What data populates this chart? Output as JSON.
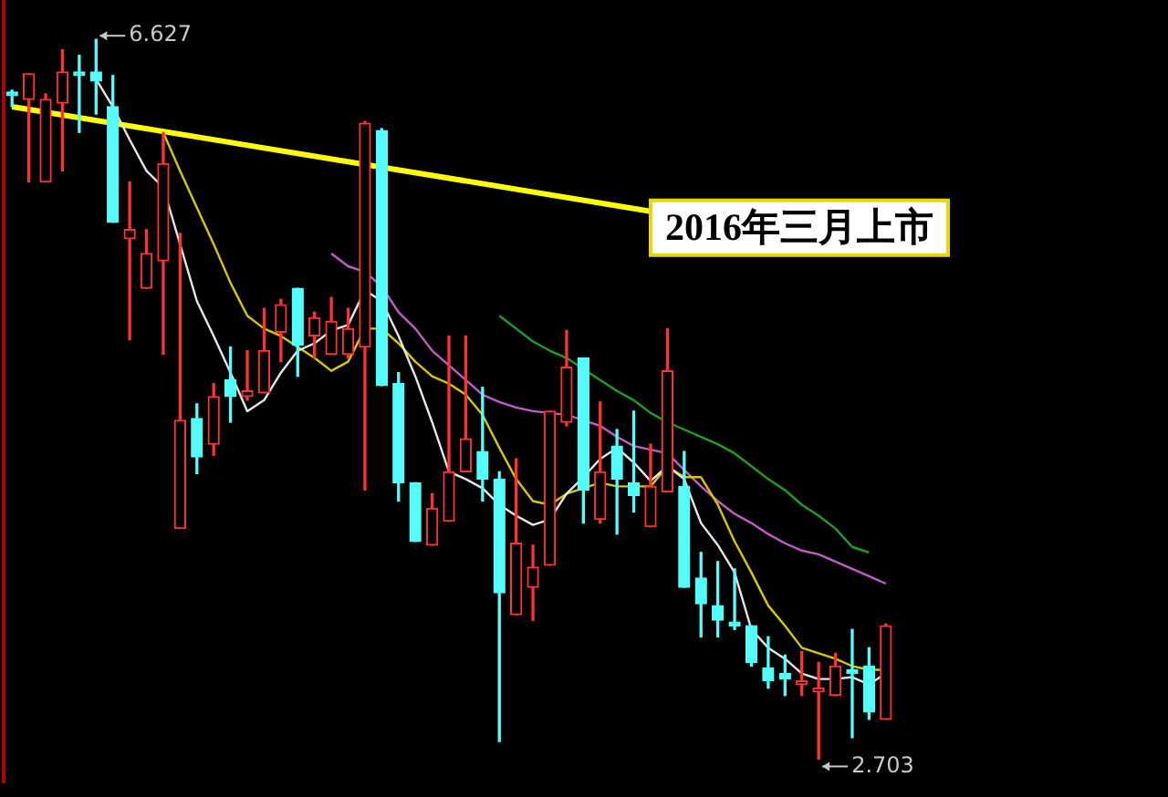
{
  "chart_data": {
    "type": "candlestick",
    "tick_labels": false,
    "legend": false,
    "marker": "none",
    "categories": [
      null,
      null,
      null,
      null,
      null,
      null,
      null,
      null,
      null,
      null,
      null,
      null,
      null,
      null,
      null,
      null,
      null,
      null,
      null,
      null,
      null,
      null,
      null,
      null,
      null,
      null,
      null,
      null,
      null,
      null,
      null,
      null,
      null,
      null,
      null,
      null,
      null,
      null,
      null,
      null,
      null,
      null,
      null,
      null,
      null,
      null,
      null,
      null,
      null,
      null,
      null,
      null,
      null
    ],
    "ohlc": [
      [
        6.33,
        6.35,
        6.26,
        6.32
      ],
      [
        6.3,
        6.44,
        5.85,
        6.44
      ],
      [
        5.85,
        6.33,
        5.85,
        6.3
      ],
      [
        6.28,
        6.57,
        5.91,
        6.45
      ],
      [
        6.44,
        6.54,
        6.12,
        6.43
      ],
      [
        6.45,
        6.627,
        6.22,
        6.4
      ],
      [
        6.26,
        6.43,
        5.63,
        5.63
      ],
      [
        5.54,
        5.85,
        4.99,
        5.59
      ],
      [
        5.27,
        5.59,
        5.27,
        5.46
      ],
      [
        5.42,
        6.12,
        4.91,
        5.95
      ],
      [
        3.96,
        5.57,
        3.96,
        4.55
      ],
      [
        4.56,
        4.64,
        4.26,
        4.35
      ],
      [
        4.42,
        4.75,
        4.36,
        4.68
      ],
      [
        4.77,
        4.95,
        4.54,
        4.68
      ],
      [
        4.68,
        4.93,
        4.66,
        4.71
      ],
      [
        4.7,
        5.16,
        4.7,
        4.93
      ],
      [
        5.03,
        5.21,
        4.87,
        5.18
      ],
      [
        5.27,
        5.27,
        4.79,
        4.96
      ],
      [
        5.01,
        5.14,
        4.89,
        5.11
      ],
      [
        4.91,
        5.22,
        4.91,
        5.09
      ],
      [
        4.91,
        5.16,
        4.89,
        5.05
      ],
      [
        4.95,
        6.18,
        4.17,
        6.17
      ],
      [
        6.13,
        6.14,
        4.74,
        4.74
      ],
      [
        4.75,
        4.81,
        4.11,
        4.21
      ],
      [
        4.21,
        4.21,
        3.89,
        3.89
      ],
      [
        3.87,
        4.15,
        3.87,
        4.07
      ],
      [
        4.0,
        5.01,
        4.0,
        4.27
      ],
      [
        4.27,
        5.01,
        4.27,
        4.45
      ],
      [
        4.38,
        4.73,
        4.11,
        4.23
      ],
      [
        4.23,
        4.27,
        2.8,
        3.61
      ],
      [
        3.49,
        4.34,
        3.49,
        3.88
      ],
      [
        3.64,
        3.87,
        3.46,
        3.75
      ],
      [
        3.76,
        4.6,
        3.76,
        4.6
      ],
      [
        4.54,
        5.04,
        4.52,
        4.84
      ],
      [
        4.89,
        4.89,
        3.99,
        4.17
      ],
      [
        4.01,
        4.65,
        3.99,
        4.27
      ],
      [
        4.41,
        4.5,
        3.93,
        4.23
      ],
      [
        4.21,
        4.6,
        4.05,
        4.14
      ],
      [
        3.97,
        4.42,
        3.97,
        4.19
      ],
      [
        4.16,
        5.05,
        4.16,
        4.82
      ],
      [
        4.19,
        4.38,
        3.64,
        3.64
      ],
      [
        3.69,
        3.83,
        3.37,
        3.55
      ],
      [
        3.54,
        3.78,
        3.37,
        3.46
      ],
      [
        3.45,
        3.74,
        3.41,
        3.43
      ],
      [
        3.43,
        3.43,
        3.21,
        3.23
      ],
      [
        3.2,
        3.37,
        3.09,
        3.13
      ],
      [
        3.17,
        3.27,
        3.05,
        3.14
      ],
      [
        3.11,
        3.29,
        3.05,
        3.13
      ],
      [
        3.07,
        3.23,
        2.703,
        3.09
      ],
      [
        3.05,
        3.28,
        3.05,
        3.21
      ],
      [
        3.19,
        3.41,
        2.82,
        3.17
      ],
      [
        3.21,
        3.31,
        2.92,
        2.96
      ],
      [
        2.92,
        3.44,
        2.92,
        3.43
      ]
    ],
    "colors": [
      "#54fcfc",
      "#ff3232",
      "#ff3232",
      "#ff3232",
      "#54fcfc",
      "#54fcfc",
      "#54fcfc",
      "#ff3232",
      "#ff3232",
      "#ff3232",
      "#ff3232",
      "#54fcfc",
      "#ff3232",
      "#54fcfc",
      "#ff3232",
      "#ff3232",
      "#ff3232",
      "#54fcfc",
      "#ff3232",
      "#ff3232",
      "#ff3232",
      "#ff3232",
      "#54fcfc",
      "#54fcfc",
      "#54fcfc",
      "#ff3232",
      "#ff3232",
      "#ff3232",
      "#54fcfc",
      "#54fcfc",
      "#ff3232",
      "#ff3232",
      "#ff3232",
      "#ff3232",
      "#54fcfc",
      "#ff3232",
      "#54fcfc",
      "#54fcfc",
      "#ff3232",
      "#ff3232",
      "#54fcfc",
      "#54fcfc",
      "#54fcfc",
      "#54fcfc",
      "#54fcfc",
      "#54fcfc",
      "#54fcfc",
      "#ff3232",
      "#ff3232",
      "#ff3232",
      "#54fcfc",
      "#54fcfc",
      "#ff3232"
    ],
    "series": [
      {
        "type": "line",
        "color": "#e6e6e6",
        "values": [
          null,
          null,
          null,
          null,
          null,
          6.41,
          6.26,
          6.08,
          5.91,
          5.82,
          5.51,
          5.2,
          5.01,
          4.81,
          4.6,
          4.66,
          4.81,
          4.93,
          4.97,
          5.04,
          5.07,
          5.26,
          5.2,
          5.01,
          4.79,
          4.54,
          4.27,
          4.23,
          4.18,
          4.09,
          4.03,
          3.98,
          4.01,
          4.15,
          4.24,
          4.34,
          4.4,
          4.32,
          4.22,
          4.3,
          4.23,
          3.99,
          3.87,
          3.72,
          3.41,
          3.31,
          3.25,
          3.17,
          3.14,
          3.14,
          3.15,
          3.11,
          3.17
        ]
      },
      {
        "type": "line",
        "color": "#d8c800",
        "values": [
          null,
          null,
          null,
          null,
          null,
          null,
          null,
          null,
          null,
          6.12,
          5.91,
          5.71,
          5.51,
          5.3,
          5.12,
          5.05,
          5.01,
          4.95,
          4.89,
          4.82,
          4.87,
          5.05,
          5.05,
          4.97,
          4.87,
          4.79,
          4.75,
          4.69,
          4.58,
          4.4,
          4.23,
          4.11,
          4.09,
          4.15,
          4.18,
          4.21,
          4.19,
          4.19,
          4.19,
          4.3,
          4.24,
          4.24,
          4.09,
          3.89,
          3.72,
          3.54,
          3.43,
          3.31,
          3.28,
          3.25,
          3.21,
          3.19,
          3.19
        ]
      },
      {
        "type": "line",
        "color": "#c45cc8",
        "values": [
          null,
          null,
          null,
          null,
          null,
          null,
          null,
          null,
          null,
          null,
          null,
          null,
          null,
          null,
          null,
          null,
          null,
          null,
          null,
          5.46,
          5.39,
          5.36,
          5.28,
          5.14,
          5.05,
          4.93,
          4.85,
          4.77,
          4.69,
          4.65,
          4.62,
          4.6,
          4.59,
          4.58,
          4.55,
          4.52,
          4.46,
          4.41,
          4.39,
          4.37,
          4.28,
          4.19,
          4.11,
          4.04,
          3.99,
          3.93,
          3.88,
          3.84,
          3.82,
          3.78,
          3.74,
          3.7,
          3.66
        ]
      },
      {
        "type": "line",
        "color": "#1fa01f",
        "values": [
          null,
          null,
          null,
          null,
          null,
          null,
          null,
          null,
          null,
          null,
          null,
          null,
          null,
          null,
          null,
          null,
          null,
          null,
          null,
          null,
          null,
          null,
          null,
          null,
          null,
          null,
          null,
          null,
          null,
          5.12,
          5.05,
          4.98,
          4.93,
          4.89,
          4.83,
          4.77,
          4.71,
          4.66,
          4.59,
          4.54,
          4.5,
          4.46,
          4.42,
          4.37,
          4.3,
          4.23,
          4.17,
          4.09,
          4.03,
          3.96,
          3.86,
          3.83,
          null
        ]
      },
      {
        "type": "line",
        "color": "#ffff00",
        "values": [
          6.26,
          null,
          null,
          null,
          null,
          null,
          null,
          null,
          null,
          null,
          null,
          null,
          null,
          null,
          null,
          null,
          null,
          null,
          null,
          null,
          null,
          null,
          null,
          null,
          null,
          null,
          null,
          null,
          null,
          null,
          null,
          null,
          null,
          null,
          null,
          null,
          null,
          null,
          5.69,
          null,
          null,
          null,
          null,
          null,
          null,
          null,
          null,
          null,
          null,
          null,
          null,
          null,
          null
        ]
      }
    ],
    "annotations": [
      "2016年三月上市",
      "6.627",
      "2.703"
    ]
  }
}
